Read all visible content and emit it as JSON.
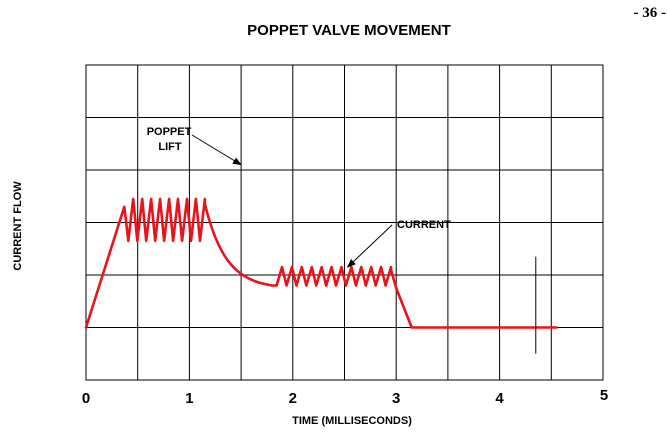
{
  "page_number": "- 36 -",
  "chart_data": {
    "type": "line",
    "title": "POPPET VALVE  MOVEMENT",
    "xlabel": "TIME (MILLISECONDS)",
    "ylabel": "CURRENT  FLOW",
    "xlim": [
      0,
      5
    ],
    "ylim": [
      0,
      6
    ],
    "x_ticks": [
      {
        "value": 0,
        "label": "0"
      },
      {
        "value": 1,
        "label": "1"
      },
      {
        "value": 2,
        "label": "2"
      },
      {
        "value": 3,
        "label": "3"
      },
      {
        "value": 4,
        "label": "4"
      },
      {
        "value": 5,
        "label": "5"
      }
    ],
    "grid": true,
    "grid_x_step": 0.5,
    "grid_y_step": 1,
    "series_color": "#e8141c",
    "current": {
      "segments": [
        {
          "kind": "line",
          "points": [
            [
              0.0,
              1.0
            ],
            [
              0.37,
              3.3
            ]
          ]
        },
        {
          "kind": "sawtooth",
          "x_start": 0.37,
          "x_end": 1.15,
          "cycles": 9,
          "low": 2.65,
          "high": 3.45
        },
        {
          "kind": "decay",
          "x_start": 1.15,
          "x_end": 1.8,
          "y_start": 3.35,
          "y_end": 1.8
        },
        {
          "kind": "sawtooth",
          "x_start": 1.8,
          "x_end": 2.95,
          "cycles": 12,
          "low": 1.8,
          "high": 2.15
        },
        {
          "kind": "line",
          "points": [
            [
              2.95,
              2.1
            ],
            [
              3.0,
              1.75
            ],
            [
              3.15,
              1.0
            ],
            [
              4.55,
              1.0
            ]
          ]
        }
      ]
    },
    "marker": {
      "x": 4.35,
      "y_low": 0.5,
      "y_high": 2.35
    },
    "annotations": [
      {
        "text": [
          "POPPET",
          "LIFT"
        ],
        "arrow_to": [
          1.5,
          4.1
        ]
      },
      {
        "text": [
          "CURRENT"
        ],
        "arrow_to": [
          2.53,
          2.15
        ]
      }
    ]
  }
}
